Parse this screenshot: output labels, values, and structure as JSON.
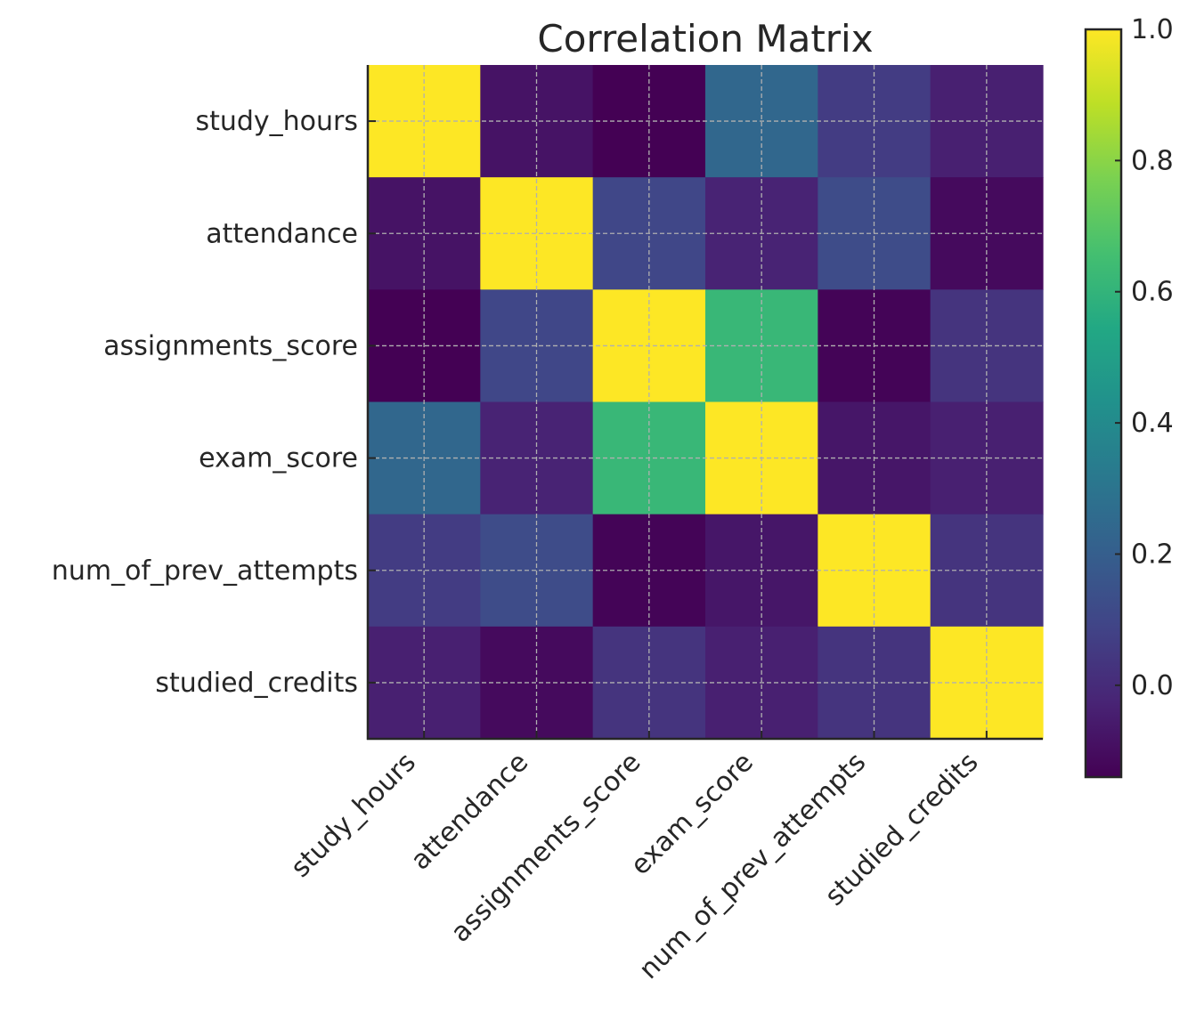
{
  "chart_data": {
    "type": "heatmap",
    "title": "Correlation Matrix",
    "categories": [
      "study_hours",
      "attendance",
      "assignments_score",
      "exam_score",
      "num_of_prev_attempts",
      "studied_credits"
    ],
    "values": [
      [
        1.0,
        -0.08,
        -0.14,
        0.24,
        0.06,
        -0.04
      ],
      [
        -0.08,
        1.0,
        0.1,
        -0.03,
        0.12,
        -0.11
      ],
      [
        -0.14,
        0.1,
        1.0,
        0.62,
        -0.13,
        0.03
      ],
      [
        0.24,
        -0.03,
        0.62,
        1.0,
        -0.07,
        -0.04
      ],
      [
        0.06,
        0.12,
        -0.13,
        -0.07,
        1.0,
        0.03
      ],
      [
        -0.04,
        -0.11,
        0.03,
        -0.04,
        0.03,
        1.0
      ]
    ],
    "colorbar": {
      "min": -0.14,
      "max": 1.0,
      "ticks": [
        "0.0",
        "0.2",
        "0.4",
        "0.6",
        "0.8",
        "1.0"
      ],
      "tick_values": [
        0.0,
        0.2,
        0.4,
        0.6,
        0.8,
        1.0
      ]
    },
    "colormap": "viridis",
    "grid": true,
    "xlabel": "",
    "ylabel": ""
  }
}
